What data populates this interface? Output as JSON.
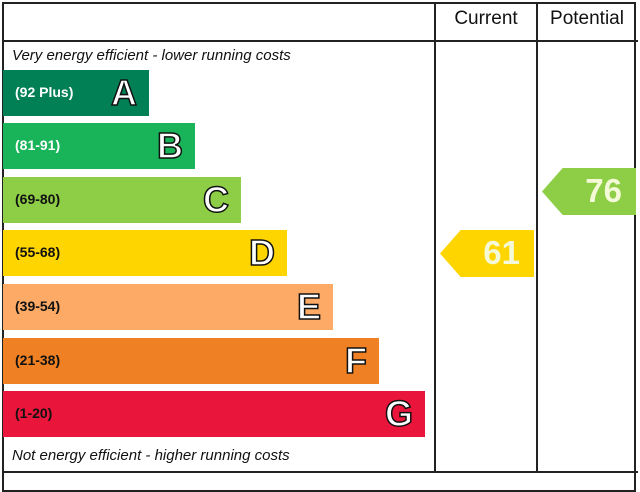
{
  "chart_data": {
    "type": "epc-rating",
    "headers": {
      "current": "Current",
      "potential": "Potential"
    },
    "top_note": "Very energy efficient - lower running costs",
    "bottom_note": "Not energy efficient - higher running costs",
    "bands": [
      {
        "letter": "A",
        "range": "(92 Plus)",
        "color": "#008054",
        "text_color": "#ffffff"
      },
      {
        "letter": "B",
        "range": "(81-91)",
        "color": "#19b459",
        "text_color": "#ffffff"
      },
      {
        "letter": "C",
        "range": "(69-80)",
        "color": "#8dce46",
        "text_color": "#111111"
      },
      {
        "letter": "D",
        "range": "(55-68)",
        "color": "#ffd500",
        "text_color": "#111111"
      },
      {
        "letter": "E",
        "range": "(39-54)",
        "color": "#fcaa65",
        "text_color": "#111111"
      },
      {
        "letter": "F",
        "range": "(21-38)",
        "color": "#ef8023",
        "text_color": "#111111"
      },
      {
        "letter": "G",
        "range": "(1-20)",
        "color": "#e9153b",
        "text_color": "#111111"
      }
    ],
    "current": {
      "value": "61",
      "band": "D",
      "color": "#ffd500"
    },
    "potential": {
      "value": "76",
      "band": "C",
      "color": "#8dce46"
    }
  }
}
